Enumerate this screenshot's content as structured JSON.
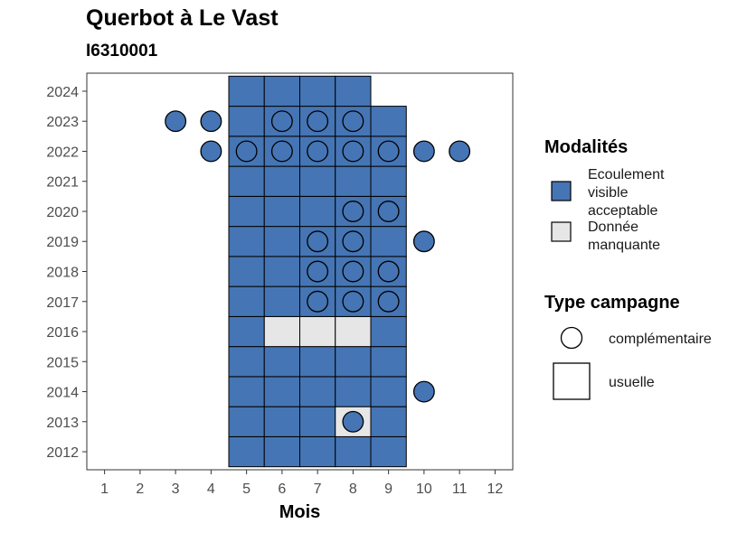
{
  "chart_data": {
    "type": "heatmap",
    "title": "Querbot à Le Vast",
    "subtitle": "I6310001",
    "xlabel": "Mois",
    "ylabel": "",
    "x_ticks": [
      1,
      2,
      3,
      4,
      5,
      6,
      7,
      8,
      9,
      10,
      11,
      12
    ],
    "y_ticks": [
      2012,
      2013,
      2014,
      2015,
      2016,
      2017,
      2018,
      2019,
      2020,
      2021,
      2022,
      2023,
      2024
    ],
    "xlim": [
      0.5,
      12.5
    ],
    "ylim": [
      2011.4,
      2024.6
    ],
    "grid": false,
    "colors": {
      "ecoulement": "#4575b4",
      "manquante": "#e6e6e6"
    },
    "tiles": [
      {
        "year": 2012,
        "month": 5,
        "modalite": "ecoulement"
      },
      {
        "year": 2012,
        "month": 6,
        "modalite": "ecoulement"
      },
      {
        "year": 2012,
        "month": 7,
        "modalite": "ecoulement"
      },
      {
        "year": 2012,
        "month": 8,
        "modalite": "ecoulement"
      },
      {
        "year": 2012,
        "month": 9,
        "modalite": "ecoulement"
      },
      {
        "year": 2013,
        "month": 5,
        "modalite": "ecoulement"
      },
      {
        "year": 2013,
        "month": 6,
        "modalite": "ecoulement"
      },
      {
        "year": 2013,
        "month": 7,
        "modalite": "ecoulement"
      },
      {
        "year": 2013,
        "month": 8,
        "modalite": "manquante"
      },
      {
        "year": 2013,
        "month": 9,
        "modalite": "ecoulement"
      },
      {
        "year": 2014,
        "month": 5,
        "modalite": "ecoulement"
      },
      {
        "year": 2014,
        "month": 6,
        "modalite": "ecoulement"
      },
      {
        "year": 2014,
        "month": 7,
        "modalite": "ecoulement"
      },
      {
        "year": 2014,
        "month": 8,
        "modalite": "ecoulement"
      },
      {
        "year": 2014,
        "month": 9,
        "modalite": "ecoulement"
      },
      {
        "year": 2015,
        "month": 5,
        "modalite": "ecoulement"
      },
      {
        "year": 2015,
        "month": 6,
        "modalite": "ecoulement"
      },
      {
        "year": 2015,
        "month": 7,
        "modalite": "ecoulement"
      },
      {
        "year": 2015,
        "month": 8,
        "modalite": "ecoulement"
      },
      {
        "year": 2015,
        "month": 9,
        "modalite": "ecoulement"
      },
      {
        "year": 2016,
        "month": 5,
        "modalite": "ecoulement"
      },
      {
        "year": 2016,
        "month": 6,
        "modalite": "manquante"
      },
      {
        "year": 2016,
        "month": 7,
        "modalite": "manquante"
      },
      {
        "year": 2016,
        "month": 8,
        "modalite": "manquante"
      },
      {
        "year": 2016,
        "month": 9,
        "modalite": "ecoulement"
      },
      {
        "year": 2017,
        "month": 5,
        "modalite": "ecoulement"
      },
      {
        "year": 2017,
        "month": 6,
        "modalite": "ecoulement"
      },
      {
        "year": 2017,
        "month": 7,
        "modalite": "ecoulement"
      },
      {
        "year": 2017,
        "month": 8,
        "modalite": "ecoulement"
      },
      {
        "year": 2017,
        "month": 9,
        "modalite": "ecoulement"
      },
      {
        "year": 2018,
        "month": 5,
        "modalite": "ecoulement"
      },
      {
        "year": 2018,
        "month": 6,
        "modalite": "ecoulement"
      },
      {
        "year": 2018,
        "month": 7,
        "modalite": "ecoulement"
      },
      {
        "year": 2018,
        "month": 8,
        "modalite": "ecoulement"
      },
      {
        "year": 2018,
        "month": 9,
        "modalite": "ecoulement"
      },
      {
        "year": 2019,
        "month": 5,
        "modalite": "ecoulement"
      },
      {
        "year": 2019,
        "month": 6,
        "modalite": "ecoulement"
      },
      {
        "year": 2019,
        "month": 7,
        "modalite": "ecoulement"
      },
      {
        "year": 2019,
        "month": 8,
        "modalite": "ecoulement"
      },
      {
        "year": 2019,
        "month": 9,
        "modalite": "ecoulement"
      },
      {
        "year": 2020,
        "month": 5,
        "modalite": "ecoulement"
      },
      {
        "year": 2020,
        "month": 6,
        "modalite": "ecoulement"
      },
      {
        "year": 2020,
        "month": 7,
        "modalite": "ecoulement"
      },
      {
        "year": 2020,
        "month": 8,
        "modalite": "ecoulement"
      },
      {
        "year": 2020,
        "month": 9,
        "modalite": "ecoulement"
      },
      {
        "year": 2021,
        "month": 5,
        "modalite": "ecoulement"
      },
      {
        "year": 2021,
        "month": 6,
        "modalite": "ecoulement"
      },
      {
        "year": 2021,
        "month": 7,
        "modalite": "ecoulement"
      },
      {
        "year": 2021,
        "month": 8,
        "modalite": "ecoulement"
      },
      {
        "year": 2021,
        "month": 9,
        "modalite": "ecoulement"
      },
      {
        "year": 2022,
        "month": 5,
        "modalite": "ecoulement"
      },
      {
        "year": 2022,
        "month": 6,
        "modalite": "ecoulement"
      },
      {
        "year": 2022,
        "month": 7,
        "modalite": "ecoulement"
      },
      {
        "year": 2022,
        "month": 8,
        "modalite": "ecoulement"
      },
      {
        "year": 2022,
        "month": 9,
        "modalite": "ecoulement"
      },
      {
        "year": 2023,
        "month": 5,
        "modalite": "ecoulement"
      },
      {
        "year": 2023,
        "month": 6,
        "modalite": "ecoulement"
      },
      {
        "year": 2023,
        "month": 7,
        "modalite": "ecoulement"
      },
      {
        "year": 2023,
        "month": 8,
        "modalite": "ecoulement"
      },
      {
        "year": 2023,
        "month": 9,
        "modalite": "ecoulement"
      },
      {
        "year": 2024,
        "month": 5,
        "modalite": "ecoulement"
      },
      {
        "year": 2024,
        "month": 6,
        "modalite": "ecoulement"
      },
      {
        "year": 2024,
        "month": 7,
        "modalite": "ecoulement"
      },
      {
        "year": 2024,
        "month": 8,
        "modalite": "ecoulement"
      }
    ],
    "points": [
      {
        "year": 2013,
        "month": 8
      },
      {
        "year": 2014,
        "month": 10
      },
      {
        "year": 2017,
        "month": 7
      },
      {
        "year": 2017,
        "month": 8
      },
      {
        "year": 2017,
        "month": 9
      },
      {
        "year": 2018,
        "month": 7
      },
      {
        "year": 2018,
        "month": 8
      },
      {
        "year": 2018,
        "month": 9
      },
      {
        "year": 2019,
        "month": 7
      },
      {
        "year": 2019,
        "month": 8
      },
      {
        "year": 2019,
        "month": 10
      },
      {
        "year": 2020,
        "month": 8
      },
      {
        "year": 2020,
        "month": 9
      },
      {
        "year": 2022,
        "month": 4
      },
      {
        "year": 2022,
        "month": 5
      },
      {
        "year": 2022,
        "month": 6
      },
      {
        "year": 2022,
        "month": 7
      },
      {
        "year": 2022,
        "month": 8
      },
      {
        "year": 2022,
        "month": 9
      },
      {
        "year": 2022,
        "month": 10
      },
      {
        "year": 2022,
        "month": 11
      },
      {
        "year": 2023,
        "month": 3
      },
      {
        "year": 2023,
        "month": 4
      },
      {
        "year": 2023,
        "month": 6
      },
      {
        "year": 2023,
        "month": 7
      },
      {
        "year": 2023,
        "month": 8
      }
    ],
    "legend": {
      "placement": "right",
      "modalites": {
        "title": "Modalités",
        "items": [
          {
            "key": "ecoulement",
            "lines": [
              "Ecoulement",
              "visible",
              "acceptable"
            ]
          },
          {
            "key": "manquante",
            "lines": [
              "Donnée",
              "manquante"
            ]
          }
        ]
      },
      "type_campagne": {
        "title": "Type campagne",
        "items": [
          {
            "shape": "circle",
            "label": "complémentaire"
          },
          {
            "shape": "square",
            "label": "usuelle"
          }
        ]
      }
    }
  }
}
